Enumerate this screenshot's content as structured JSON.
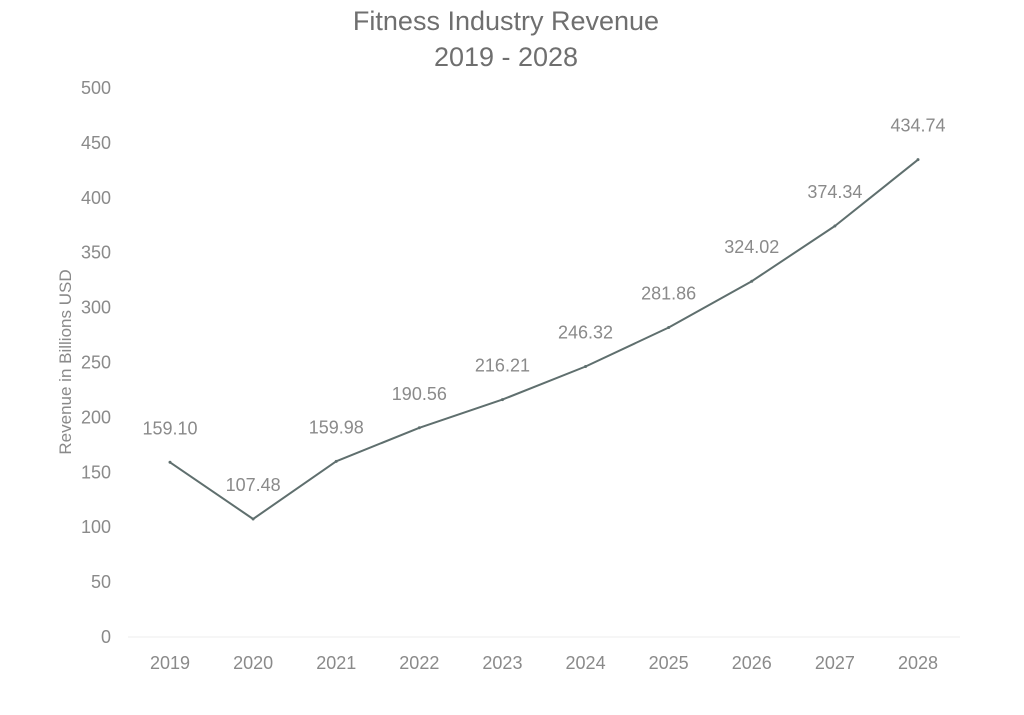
{
  "chart_data": {
    "type": "line",
    "title": "Fitness Industry Revenue",
    "subtitle": "2019 - 2028",
    "xlabel": "",
    "ylabel": "Revenue in Billions USD",
    "categories": [
      "2019",
      "2020",
      "2021",
      "2022",
      "2023",
      "2024",
      "2025",
      "2026",
      "2027",
      "2028"
    ],
    "series": [
      {
        "values": [
          159.1,
          107.48,
          159.98,
          190.56,
          216.21,
          246.32,
          281.86,
          324.02,
          374.34,
          434.74
        ]
      }
    ],
    "data_labels": [
      "159.10",
      "107.48",
      "159.98",
      "190.56",
      "216.21",
      "246.32",
      "281.86",
      "324.02",
      "374.34",
      "434.74"
    ],
    "y_ticks": [
      "0",
      "50",
      "100",
      "150",
      "200",
      "250",
      "300",
      "350",
      "400",
      "450",
      "500"
    ],
    "ylim": [
      0,
      500
    ],
    "grid": false,
    "legend": "none",
    "colors": {
      "line": "#5f6f6e",
      "text": "#8a8a8a",
      "title": "#6f6f6f",
      "baseline": "#ececec"
    }
  }
}
